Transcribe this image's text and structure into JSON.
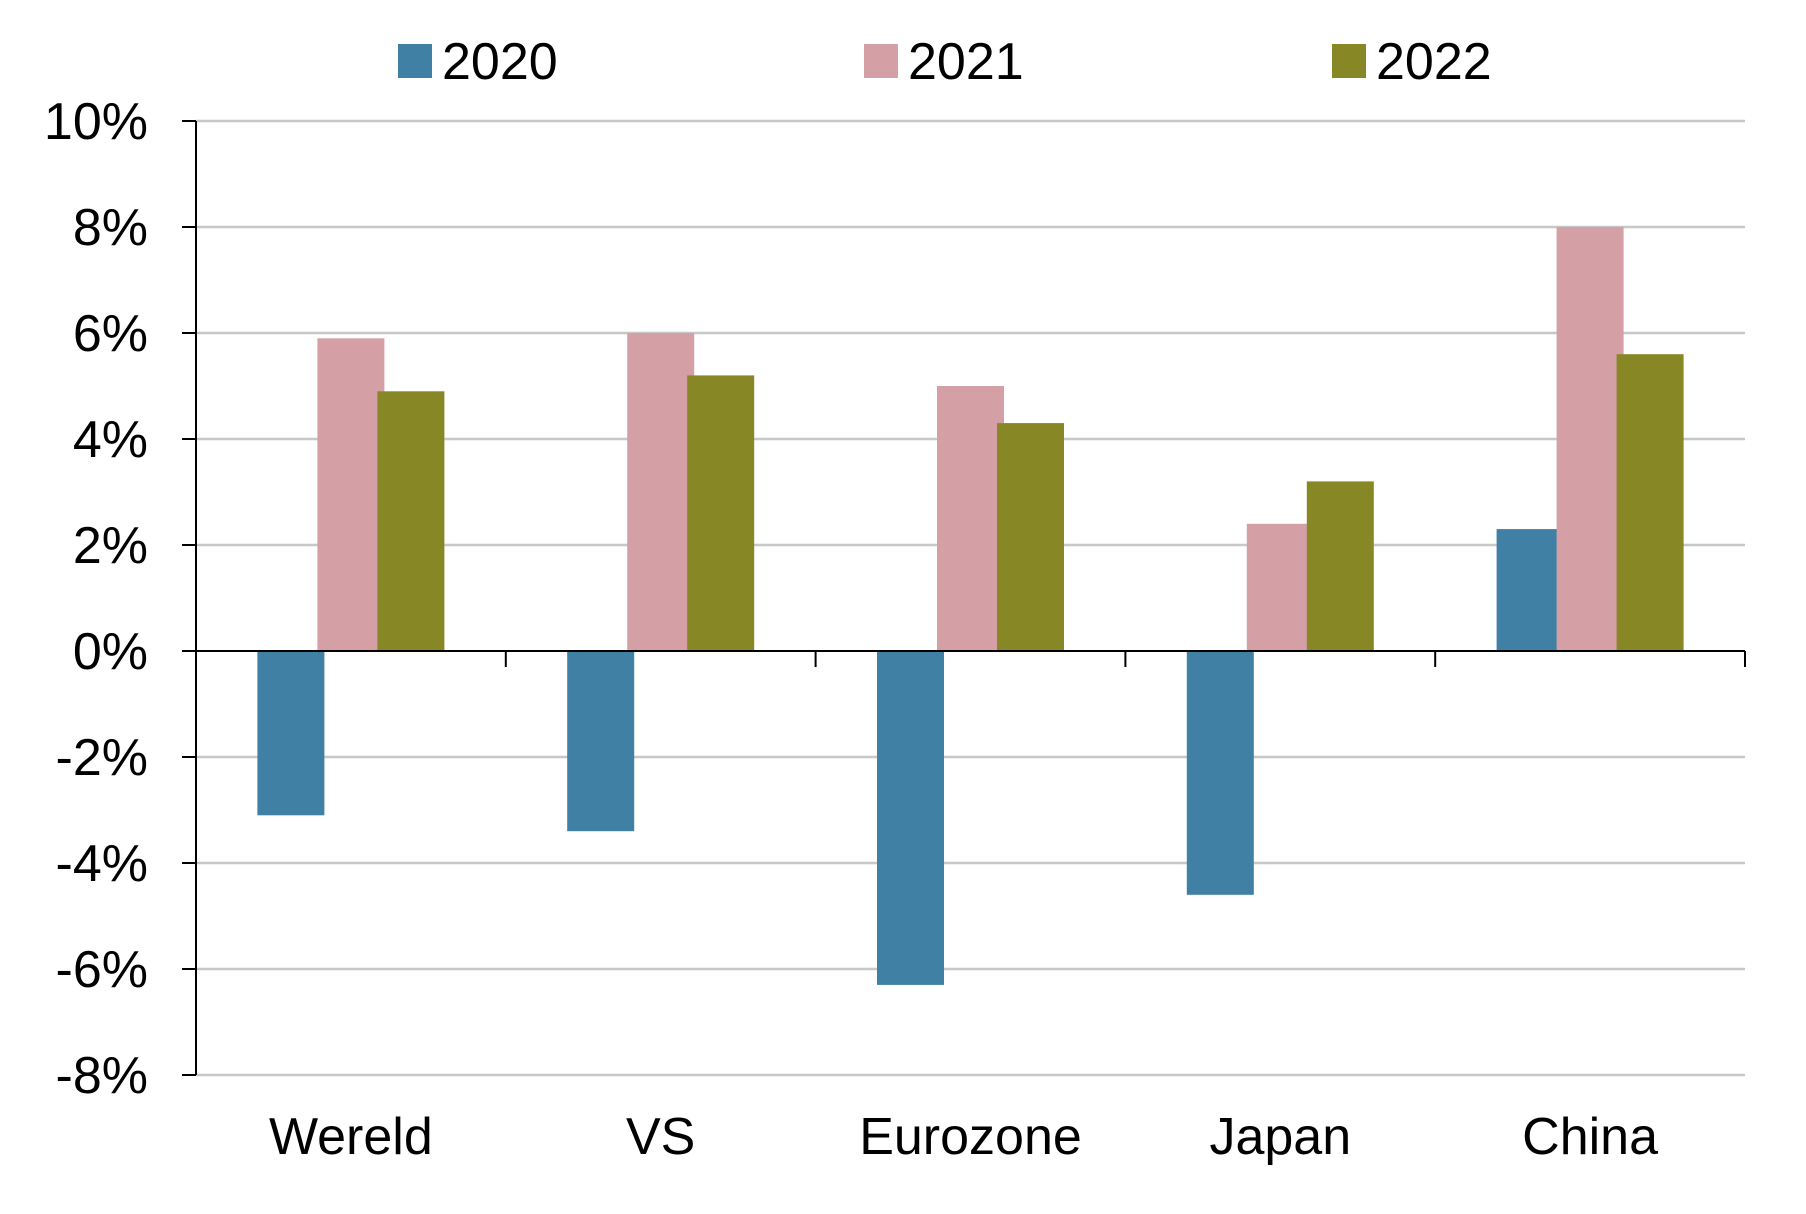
{
  "chart_data": {
    "type": "bar",
    "title": "",
    "xlabel": "",
    "ylabel": "",
    "categories": [
      "Wereld",
      "VS",
      "Eurozone",
      "Japan",
      "China"
    ],
    "series": [
      {
        "name": "2020",
        "color": "#4080A4",
        "values": [
          -3.1,
          -3.4,
          -6.3,
          -4.6,
          2.3
        ]
      },
      {
        "name": "2021",
        "color": "#D4A0A5",
        "values": [
          5.9,
          6.0,
          5.0,
          2.4,
          8.0
        ]
      },
      {
        "name": "2022",
        "color": "#878726",
        "values": [
          4.9,
          5.2,
          4.3,
          3.2,
          5.6
        ]
      }
    ],
    "ylim": [
      -8,
      10
    ],
    "y_ticks": [
      10,
      8,
      6,
      4,
      2,
      0,
      -2,
      -4,
      -6,
      -8
    ],
    "y_tick_labels": [
      "10%",
      "8%",
      "6%",
      "4%",
      "2%",
      "0%",
      "-2%",
      "-4%",
      "-6%",
      "-8%"
    ],
    "grid": true,
    "legend_position": "top"
  }
}
